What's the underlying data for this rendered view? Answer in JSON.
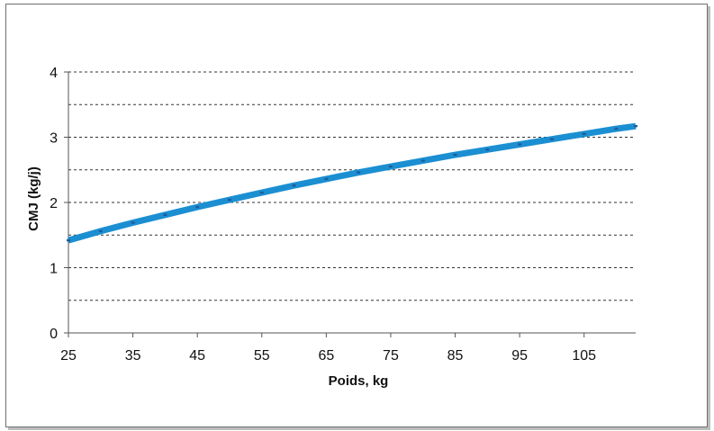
{
  "chart_data": {
    "type": "line",
    "title": "",
    "xlabel": "Poids, kg",
    "ylabel": "CMJ (kg/j)",
    "xlim": [
      25,
      113
    ],
    "ylim": [
      0,
      4
    ],
    "x_ticks": [
      25,
      35,
      45,
      55,
      65,
      75,
      85,
      95,
      105
    ],
    "y_ticks": [
      0,
      1,
      2,
      3,
      4
    ],
    "grid": "dashed horizontal lines every 0.5",
    "legend": "none",
    "series": [
      {
        "color": "#1b8fd2",
        "x": [
          25,
          30,
          35,
          40,
          45,
          50,
          55,
          60,
          65,
          70,
          75,
          80,
          85,
          90,
          95,
          100,
          105,
          110,
          113
        ],
        "y": [
          1.42,
          1.56,
          1.69,
          1.81,
          1.93,
          2.04,
          2.15,
          2.26,
          2.36,
          2.46,
          2.55,
          2.64,
          2.73,
          2.81,
          2.89,
          2.97,
          3.05,
          3.13,
          3.17
        ]
      }
    ],
    "marker_color": "#1f5c99"
  }
}
